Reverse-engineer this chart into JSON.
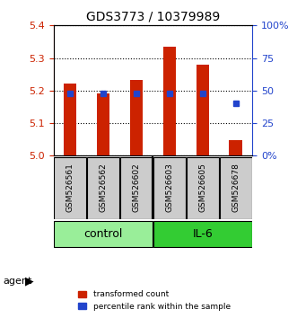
{
  "title": "GDS3773 / 10379989",
  "samples": [
    "GSM526561",
    "GSM526562",
    "GSM526602",
    "GSM526603",
    "GSM526605",
    "GSM526678"
  ],
  "groups": [
    "control",
    "control",
    "control",
    "IL-6",
    "IL-6",
    "IL-6"
  ],
  "red_values": [
    5.22,
    5.192,
    5.232,
    5.335,
    5.278,
    5.048
  ],
  "blue_values": [
    5.185,
    5.185,
    5.185,
    5.185,
    5.185,
    5.165
  ],
  "blue_percentiles": [
    48,
    48,
    48,
    48,
    48,
    40
  ],
  "ylim_left": [
    5.0,
    5.4
  ],
  "ylim_right": [
    0,
    100
  ],
  "yticks_left": [
    5.0,
    5.1,
    5.2,
    5.3,
    5.4
  ],
  "yticks_right": [
    0,
    25,
    50,
    75,
    100
  ],
  "ytick_labels_right": [
    "0%",
    "25",
    "50",
    "75",
    "100%"
  ],
  "bar_width": 0.4,
  "red_color": "#cc2200",
  "blue_color": "#2244cc",
  "control_color": "#99ee99",
  "il6_color": "#33cc33",
  "sample_bg_color": "#cccccc",
  "base_value": 5.0,
  "grid_color": "#000000",
  "legend_red": "transformed count",
  "legend_blue": "percentile rank within the sample",
  "agent_label": "agent",
  "control_label": "control",
  "il6_label": "IL-6"
}
